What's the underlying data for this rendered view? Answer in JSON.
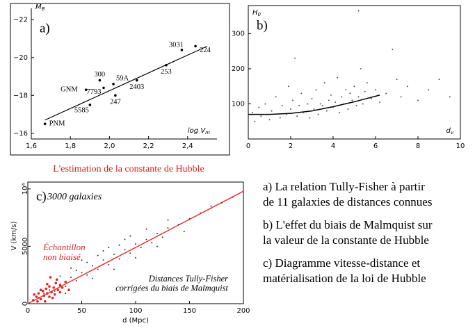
{
  "title": "L'estimation de la constante de Hubble",
  "captions": [
    [
      "a) La relation Tully-Fisher à partir",
      "de 11 galaxies de distances connues"
    ],
    [
      "b) L'effet du biais de Malmquist sur",
      "la valeur de la constante de Hubble"
    ],
    [
      "c) Diagramme vitesse-distance et",
      "matérialisation de la loi de Hubble"
    ]
  ],
  "chart_data": [
    {
      "type": "scatter",
      "title": "a)",
      "xlabel": {
        "text": "log V",
        "sub": "m"
      },
      "ylabel": {
        "text": "M",
        "sub": "B"
      },
      "xlim": [
        1.6,
        2.55
      ],
      "ylim": [
        -15.7,
        -22.6
      ],
      "xticks": [
        {
          "value": 1.6,
          "label": "1,6"
        },
        {
          "value": 1.8,
          "label": "1,8"
        },
        {
          "value": 2.0,
          "label": "2,0"
        },
        {
          "value": 2.2,
          "label": "2,2"
        },
        {
          "value": 2.4,
          "label": "2,4"
        }
      ],
      "yticks": [
        {
          "value": -22,
          "label": "−22"
        },
        {
          "value": -20,
          "label": "−20"
        },
        {
          "value": -18,
          "label": "−18"
        },
        {
          "value": -16,
          "label": "−16"
        }
      ],
      "color": "#000000",
      "x": [
        1.67,
        1.9,
        1.88,
        1.97,
        1.95,
        2.02,
        2.03,
        2.14,
        2.29,
        2.37,
        2.44
      ],
      "values": [
        -16.5,
        -17.5,
        -18.3,
        -18.4,
        -18.8,
        -18.6,
        -18.0,
        -18.8,
        -19.6,
        -20.4,
        -20.6
      ],
      "point_labels": [
        "PNM",
        "5585",
        "GNM",
        "7793",
        "300",
        "59A",
        "247",
        "2403",
        "253",
        "3031",
        "224"
      ],
      "fit_line": {
        "color": "#000000",
        "x": [
          1.67,
          2.5
        ],
        "y": [
          -16.7,
          -20.6
        ]
      }
    },
    {
      "type": "scatter",
      "title": "b)",
      "xlabel": {
        "text": "d",
        "sub": "v"
      },
      "ylabel": {
        "text": "H",
        "sub": "0"
      },
      "xlim": [
        0,
        10
      ],
      "ylim": [
        0,
        380
      ],
      "xticks": [
        0,
        2,
        4,
        6,
        8,
        10
      ],
      "yticks": [
        100,
        200,
        300
      ],
      "color": "#555555",
      "x": [
        0.2,
        0.3,
        0.5,
        0.6,
        0.8,
        1.0,
        1.1,
        1.3,
        1.5,
        1.6,
        1.8,
        1.9,
        2.0,
        2.1,
        2.3,
        2.4,
        2.5,
        2.6,
        2.8,
        2.9,
        3.0,
        3.1,
        3.2,
        3.3,
        3.4,
        3.5,
        3.6,
        3.7,
        3.8,
        3.9,
        4.0,
        4.1,
        4.2,
        4.3,
        4.4,
        4.5,
        4.6,
        4.7,
        4.8,
        4.9,
        5.0,
        5.1,
        5.2,
        5.3,
        5.4,
        5.5,
        5.6,
        5.8,
        6.0,
        6.2,
        6.5,
        6.8,
        7.0,
        7.2,
        7.5,
        8.0,
        8.5,
        9.0,
        9.5,
        2.2,
        5.2
      ],
      "values": [
        75,
        50,
        90,
        65,
        100,
        55,
        80,
        120,
        60,
        95,
        70,
        150,
        85,
        110,
        65,
        95,
        130,
        75,
        100,
        60,
        115,
        85,
        140,
        70,
        100,
        95,
        160,
        80,
        110,
        125,
        90,
        105,
        175,
        75,
        120,
        100,
        140,
        85,
        130,
        110,
        150,
        95,
        120,
        200,
        100,
        135,
        160,
        115,
        140,
        105,
        130,
        255,
        170,
        120,
        150,
        110,
        140,
        170,
        120,
        230,
        365
      ],
      "fit_line": {
        "color": "#000000",
        "x": [
          0,
          1,
          2,
          3,
          4,
          5,
          6.2
        ],
        "y": [
          70,
          70,
          73,
          80,
          92,
          106,
          125
        ]
      }
    },
    {
      "type": "scatter",
      "title": "c)",
      "xlabel": "d (Mpc)",
      "ylabel": "V (km/s)",
      "xlim": [
        0,
        200
      ],
      "ylim": [
        0,
        10600
      ],
      "xticks": [
        0,
        50,
        100,
        150,
        200
      ],
      "yticks": [
        0,
        5000,
        {
          "value": 10000,
          "label": "10⁴"
        }
      ],
      "annotations": [
        {
          "text": [
            "3000 galaxies"
          ],
          "color": "#000000"
        },
        {
          "text": [
            "Échantillon",
            "non biaisé"
          ],
          "color": "#e02020"
        },
        {
          "text": [
            "Distances Tully-Fisher",
            "corrigées du biais de Malmquist"
          ],
          "color": "#000000"
        }
      ],
      "series": [
        {
          "color": "#333333",
          "x": [
            10,
            15,
            20,
            25,
            30,
            35,
            40,
            45,
            50,
            55,
            60,
            65,
            70,
            75,
            80,
            85,
            90,
            95,
            100,
            105,
            110,
            115,
            120,
            125,
            130,
            140,
            150,
            160,
            170,
            180,
            190,
            50,
            60,
            70,
            80,
            90,
            100,
            110,
            120,
            40,
            30,
            35,
            45,
            55,
            65,
            75,
            85,
            95,
            130,
            145
          ],
          "values": [
            500,
            900,
            1200,
            1100,
            1700,
            1500,
            2300,
            2000,
            2700,
            2500,
            3300,
            3000,
            3800,
            3400,
            4300,
            3900,
            4700,
            4400,
            5200,
            4900,
            5600,
            5300,
            6100,
            5800,
            6600,
            6900,
            7400,
            7900,
            8500,
            8800,
            9300,
            3800,
            2200,
            4600,
            3000,
            5600,
            4000,
            6500,
            5000,
            3100,
            2400,
            900,
            2900,
            3600,
            4200,
            4900,
            5100,
            5900,
            7300,
            6300
          ]
        },
        {
          "color": "#e82020",
          "x": [
            5,
            8,
            10,
            12,
            14,
            15,
            17,
            18,
            20,
            20,
            22,
            24,
            25,
            26,
            28,
            30,
            30,
            32,
            35,
            38,
            12,
            16,
            18,
            23,
            27,
            9,
            6,
            21
          ],
          "values": [
            300,
            600,
            900,
            400,
            1100,
            700,
            1300,
            900,
            1500,
            600,
            1000,
            1400,
            800,
            1800,
            1200,
            1000,
            1600,
            1400,
            1900,
            1200,
            1200,
            200,
            1700,
            500,
            2100,
            200,
            800,
            2300
          ]
        }
      ],
      "fit_line": {
        "color": "#e83030",
        "x": [
          0,
          200
        ],
        "y": [
          0,
          9800
        ]
      }
    }
  ]
}
